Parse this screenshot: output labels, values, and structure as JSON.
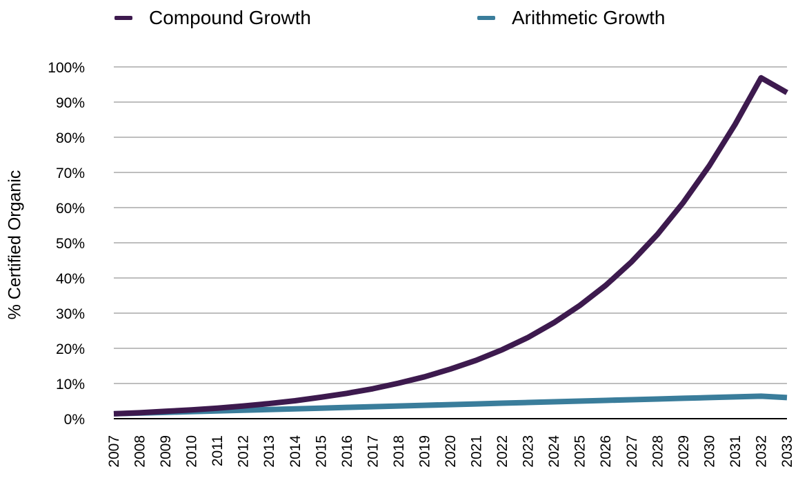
{
  "chart_data": {
    "type": "line",
    "title": "",
    "xlabel": "",
    "ylabel": "% Certified Organic",
    "x": [
      "2007",
      "2008",
      "2009",
      "2010",
      "2011",
      "2012",
      "2013",
      "2014",
      "2015",
      "2016",
      "2017",
      "2018",
      "2019",
      "2020",
      "2021",
      "2022",
      "2023",
      "2024",
      "2025",
      "2026",
      "2027",
      "2028",
      "2029",
      "2030",
      "2031",
      "2032",
      "2033"
    ],
    "ylim": [
      0,
      100
    ],
    "yticks": [
      "0%",
      "10%",
      "20%",
      "30%",
      "40%",
      "50%",
      "60%",
      "70%",
      "80%",
      "90%",
      "100%"
    ],
    "grid": true,
    "legend_position": "top",
    "series": [
      {
        "name": "Compound Growth",
        "color": "#3D1A4E",
        "values": [
          1.4,
          1.7,
          2.1,
          2.5,
          3.0,
          3.6,
          4.3,
          5.1,
          6.1,
          7.2,
          8.5,
          10.1,
          11.9,
          14.1,
          16.6,
          19.6,
          23.1,
          27.3,
          32.2,
          37.9,
          44.6,
          52.4,
          61.5,
          71.9,
          83.7,
          96.9,
          92.7
        ]
      },
      {
        "name": "Arithmetic Growth",
        "color": "#3A7D9B",
        "values": [
          1.4,
          1.6,
          1.8,
          2.0,
          2.2,
          2.4,
          2.6,
          2.8,
          3.0,
          3.2,
          3.4,
          3.6,
          3.8,
          4.0,
          4.2,
          4.4,
          4.6,
          4.8,
          5.0,
          5.2,
          5.4,
          5.6,
          5.8,
          6.0,
          6.2,
          6.4,
          6.0
        ]
      }
    ]
  }
}
